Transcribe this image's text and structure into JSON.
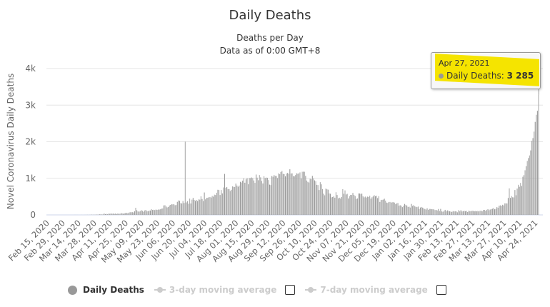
{
  "chart_data": {
    "type": "bar",
    "title": "Daily Deaths",
    "subtitle": [
      "Deaths per Day",
      "Data as of 0:00 GMT+8"
    ],
    "ylabel": "Novel Coronavirus Daily Deaths",
    "xlabel": "",
    "ylim": [
      0,
      4000
    ],
    "yticks": [
      {
        "v": 0,
        "label": "0"
      },
      {
        "v": 1000,
        "label": "1k"
      },
      {
        "v": 2000,
        "label": "2k"
      },
      {
        "v": 3000,
        "label": "3k"
      },
      {
        "v": 4000,
        "label": "4k"
      }
    ],
    "grid": true,
    "x_start": "2020-02-15",
    "x_end": "2021-04-27",
    "xtick_every_days": 14,
    "xticks": [
      "Feb 15, 2020",
      "Feb 29, 2020",
      "Mar 14, 2020",
      "Mar 28, 2020",
      "Apr 11, 2020",
      "Apr 25, 2020",
      "May 09, 2020",
      "May 23, 2020",
      "Jun 06, 2020",
      "Jun 20, 2020",
      "Jul 04, 2020",
      "Jul 18, 2020",
      "Aug 01, 2020",
      "Aug 15, 2020",
      "Aug 29, 2020",
      "Sep 12, 2020",
      "Sep 26, 2020",
      "Oct 10, 2020",
      "Oct 24, 2020",
      "Nov 07, 2020",
      "Nov 21, 2020",
      "Dec 05, 2020",
      "Dec 19, 2020",
      "Jan 02, 2021",
      "Jan 16, 2021",
      "Jan 30, 2021",
      "Feb 13, 2021",
      "Feb 27, 2021",
      "Mar 13, 2021",
      "Mar 27, 2021",
      "Apr 10, 2021",
      "Apr 24, 2021"
    ],
    "series": [
      {
        "name": "Daily Deaths",
        "color": "#999999",
        "values": [
          0,
          0,
          0,
          0,
          0,
          0,
          0,
          0,
          0,
          0,
          0,
          0,
          0,
          0,
          0,
          0,
          0,
          0,
          0,
          0,
          0,
          0,
          0,
          0,
          0,
          1,
          0,
          1,
          0,
          0,
          0,
          1,
          0,
          0,
          1,
          1,
          3,
          1,
          2,
          4,
          6,
          3,
          6,
          4,
          10,
          6,
          9,
          17,
          14,
          12,
          13,
          40,
          20,
          27,
          17,
          35,
          30,
          40,
          31,
          38,
          27,
          37,
          25,
          36,
          31,
          31,
          50,
          40,
          34,
          43,
          51,
          56,
          46,
          62,
          73,
          72,
          75,
          66,
          99,
          195,
          128,
          95,
          89,
          103,
          128,
          111,
          87,
          122,
          136,
          100,
          101,
          118,
          120,
          157,
          134,
          140,
          132,
          148,
          137,
          147,
          146,
          154,
          170,
          175,
          260,
          265,
          230,
          204,
          217,
          259,
          273,
          295,
          287,
          294,
          266,
          270,
          357,
          396,
          386,
          325,
          311,
          380,
          325,
          2003,
          341,
          375,
          306,
          445,
          312,
          418,
          465,
          411,
          384,
          410,
          380,
          425,
          417,
          507,
          434,
          379,
          613,
          425,
          465,
          467,
          482,
          489,
          475,
          518,
          500,
          553,
          543,
          606,
          687,
          680,
          543,
          681,
          587,
          750,
          1120,
          740,
          761,
          708,
          705,
          654,
          687,
          779,
          768,
          764,
          854,
          802,
          771,
          803,
          904,
          886,
          934,
          1004,
          879,
          971,
          1004,
          837,
          1007,
          1006,
          1023,
          1007,
          941,
          875,
          1103,
          1018,
          948,
          1089,
          1027,
          928,
          858,
          1057,
          1007,
          1021,
          1015,
          953,
          827,
          815,
          1062,
          1043,
          1087,
          1066,
          1064,
          1008,
          1133,
          1115,
          1174,
          1202,
          1120,
          1114,
          1053,
          1130,
          1148,
          1123,
          1247,
          1130,
          1136,
          1062,
          1053,
          1089,
          1136,
          1124,
          1134,
          1162,
          995,
          1179,
          1181,
          1179,
          1069,
          940,
          905,
          884,
          986,
          974,
          1066,
          1000,
          944,
          918,
          822,
          816,
          680,
          895,
          836,
          706,
          579,
          536,
          717,
          700,
          690,
          585,
          578,
          480,
          488,
          508,
          470,
          620,
          543,
          450,
          470,
          447,
          490,
          704,
          577,
          670,
          559,
          577,
          448,
          512,
          546,
          543,
          600,
          547,
          516,
          435,
          449,
          585,
          584,
          576,
          580,
          511,
          480,
          501,
          475,
          500,
          490,
          525,
          443,
          482,
          506,
          540,
          512,
          524,
          460,
          512,
          355,
          406,
          413,
          418,
          442,
          391,
          336,
          326,
          354,
          355,
          337,
          347,
          347,
          336,
          292,
          318,
          324,
          251,
          264,
          251,
          212,
          251,
          299,
          277,
          256,
          217,
          224,
          201,
          300,
          246,
          264,
          235,
          222,
          212,
          228,
          162,
          201,
          217,
          199,
          175,
          161,
          145,
          181,
          137,
          163,
          162,
          155,
          154,
          152,
          132,
          136,
          121,
          161,
          107,
          164,
          96,
          86,
          110,
          138,
          96,
          124,
          112,
          99,
          93,
          81,
          104,
          94,
          101,
          93,
          71,
          128,
          97,
          129,
          94,
          103,
          110,
          102,
          109,
          78,
          117,
          103,
          101,
          113,
          109,
          99,
          106,
          100,
          108,
          97,
          113,
          114,
          97,
          134,
          137,
          112,
          140,
          158,
          127,
          147,
          158,
          168,
          188,
          154,
          163,
          212,
          196,
          251,
          262,
          248,
          277,
          261,
          315,
          316,
          312,
          463,
          725,
          465,
          516,
          482,
          478,
          680,
          537,
          719,
          823,
          769,
          874,
          790,
          1041,
          1086,
          1220,
          1332,
          1475,
          1553,
          1626,
          1763,
          2027,
          2099,
          2276,
          2542,
          2736,
          2845,
          3285
        ]
      }
    ],
    "tooltip": {
      "date": "Apr 27, 2021",
      "label": "Daily Deaths:",
      "value": "3 285"
    },
    "legend": {
      "placement": "bottom-center",
      "items": [
        {
          "label": "Daily Deaths",
          "active": true,
          "color": "#999999"
        },
        {
          "label": "3-day moving average",
          "active": false,
          "color": "#cccccc"
        },
        {
          "label": "7-day moving average",
          "active": false,
          "color": "#cccccc"
        }
      ]
    }
  }
}
